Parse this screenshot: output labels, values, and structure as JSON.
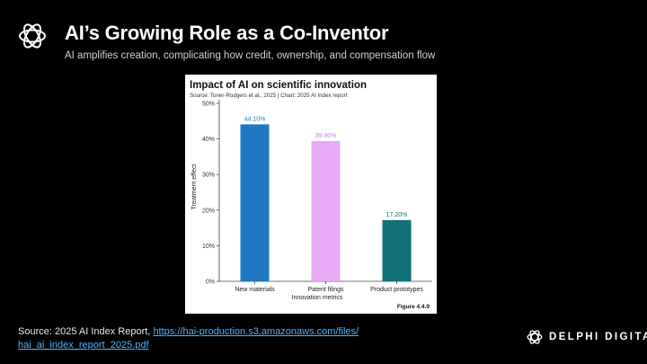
{
  "slide": {
    "title": "AI’s Growing Role as a Co-Inventor",
    "subtitle": "AI amplifies creation, complicating how credit, ownership, and compensation flow",
    "source_prefix": "Source: 2025 AI Index Report, ",
    "source_link_line1": "https://hai-production.s3.amazonaws.com/files/",
    "source_link_line2": "hai_ai_index_report_2025.pdf",
    "brand_name": "DELPHI DIGITAL",
    "logo_icon": "flower-knot-icon"
  },
  "chart_data": {
    "type": "bar",
    "title": "Impact of AI on scientific innovation",
    "subtitle": "Source: Toner-Rodgers et al., 2025 | Chart: 2025 AI Index report",
    "xlabel": "Innovation metrics",
    "ylabel": "Treatment effect",
    "figure_label": "Figure 4.4.9",
    "categories": [
      "New materials",
      "Patent filings",
      "Product prototypes"
    ],
    "values": [
      44.1,
      39.4,
      17.2
    ],
    "value_labels": [
      "44.10%",
      "39.40%",
      "17.20%"
    ],
    "colors": [
      "#1f77c4",
      "#e8a9f4",
      "#14707a"
    ],
    "label_colors": [
      "#1f77c4",
      "#d67ce6",
      "#14707a"
    ],
    "yticks": [
      "0%",
      "10%",
      "20%",
      "30%",
      "40%",
      "50%"
    ],
    "ytick_values": [
      0,
      10,
      20,
      30,
      40,
      50
    ],
    "ylim": [
      0,
      50
    ],
    "grid": false
  }
}
